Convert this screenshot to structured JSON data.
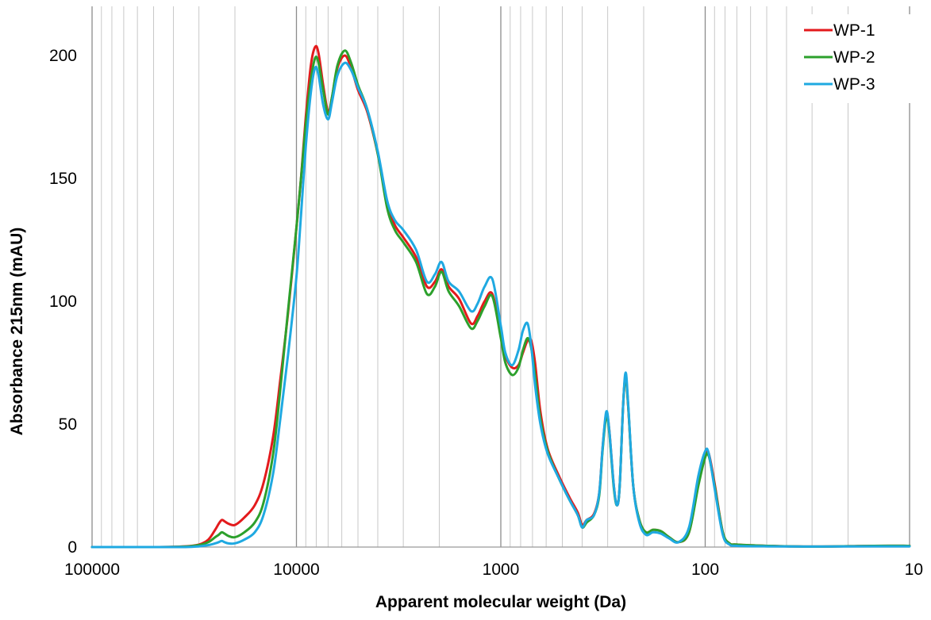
{
  "chart_data": {
    "type": "line",
    "title": "",
    "xlabel": "Apparent molecular weight (Da)",
    "ylabel": "Absorbance 215nm (mAU)",
    "x_scale": "log",
    "x_reversed": true,
    "xlim": [
      100000,
      10
    ],
    "ylim": [
      0,
      220
    ],
    "x_ticks": [
      {
        "value": 100000,
        "label": "100000"
      },
      {
        "value": 10000,
        "label": "10000"
      },
      {
        "value": 1000,
        "label": "1000"
      },
      {
        "value": 100,
        "label": "100"
      },
      {
        "value": 10,
        "label": "10"
      }
    ],
    "y_ticks": [
      {
        "value": 0,
        "label": "0"
      },
      {
        "value": 50,
        "label": "50"
      },
      {
        "value": 100,
        "label": "100"
      },
      {
        "value": 150,
        "label": "150"
      },
      {
        "value": 200,
        "label": "200"
      }
    ],
    "grid": "vertical log gridlines",
    "legend_position": "top-right",
    "series": [
      {
        "name": "WP-1",
        "color": "#e31a1c",
        "points": [
          [
            100000,
            0
          ],
          [
            50000,
            0
          ],
          [
            35000,
            0.3
          ],
          [
            30000,
            1
          ],
          [
            27000,
            3
          ],
          [
            25000,
            7
          ],
          [
            24000,
            9.5
          ],
          [
            23200,
            11
          ],
          [
            22500,
            10.5
          ],
          [
            21500,
            9.5
          ],
          [
            20000,
            9
          ],
          [
            18000,
            12
          ],
          [
            16000,
            17
          ],
          [
            14500,
            26
          ],
          [
            13000,
            45
          ],
          [
            12000,
            68
          ],
          [
            11000,
            95
          ],
          [
            10000,
            130
          ],
          [
            9500,
            150
          ],
          [
            9000,
            175
          ],
          [
            8500,
            196
          ],
          [
            8100,
            203.5
          ],
          [
            7800,
            201
          ],
          [
            7400,
            188
          ],
          [
            7000,
            177
          ],
          [
            6700,
            183
          ],
          [
            6300,
            195
          ],
          [
            5800,
            200
          ],
          [
            5400,
            195
          ],
          [
            5000,
            186
          ],
          [
            4500,
            177
          ],
          [
            4000,
            160
          ],
          [
            3600,
            140
          ],
          [
            3300,
            131
          ],
          [
            3000,
            126
          ],
          [
            2600,
            118
          ],
          [
            2300,
            106
          ],
          [
            2100,
            108
          ],
          [
            1950,
            113
          ],
          [
            1800,
            106
          ],
          [
            1600,
            101
          ],
          [
            1400,
            91
          ],
          [
            1300,
            94
          ],
          [
            1200,
            100
          ],
          [
            1100,
            103
          ],
          [
            1000,
            87
          ],
          [
            950,
            78
          ],
          [
            880,
            73
          ],
          [
            820,
            74
          ],
          [
            780,
            79
          ],
          [
            740,
            84
          ],
          [
            710,
            84
          ],
          [
            680,
            75
          ],
          [
            640,
            55
          ],
          [
            590,
            40
          ],
          [
            520,
            29
          ],
          [
            460,
            20
          ],
          [
            420,
            14
          ],
          [
            400,
            9
          ],
          [
            380,
            11
          ],
          [
            350,
            13.5
          ],
          [
            330,
            22
          ],
          [
            318,
            40
          ],
          [
            305,
            54
          ],
          [
            295,
            48
          ],
          [
            280,
            25
          ],
          [
            270,
            17
          ],
          [
            262,
            25
          ],
          [
            252,
            58
          ],
          [
            245,
            69
          ],
          [
            238,
            57
          ],
          [
            225,
            25
          ],
          [
            210,
            11
          ],
          [
            195,
            6
          ],
          [
            180,
            7
          ],
          [
            165,
            6.5
          ],
          [
            150,
            4
          ],
          [
            135,
            2
          ],
          [
            120,
            6
          ],
          [
            108,
            26
          ],
          [
            100,
            37.5
          ],
          [
            96,
            38
          ],
          [
            90,
            26
          ],
          [
            82,
            6
          ],
          [
            76,
            1.5
          ],
          [
            70,
            1
          ],
          [
            50,
            0.5
          ],
          [
            30,
            0.2
          ],
          [
            15,
            0.5
          ],
          [
            10,
            0.5
          ]
        ]
      },
      {
        "name": "WP-2",
        "color": "#2ca02c",
        "points": [
          [
            100000,
            0
          ],
          [
            50000,
            0
          ],
          [
            35000,
            0.2
          ],
          [
            30000,
            0.8
          ],
          [
            27000,
            2
          ],
          [
            25000,
            4
          ],
          [
            24000,
            5
          ],
          [
            23200,
            6
          ],
          [
            22500,
            5.5
          ],
          [
            21500,
            4.5
          ],
          [
            20000,
            4
          ],
          [
            18000,
            6
          ],
          [
            16000,
            10
          ],
          [
            14500,
            18
          ],
          [
            13000,
            38
          ],
          [
            12000,
            64
          ],
          [
            11000,
            96
          ],
          [
            10000,
            130
          ],
          [
            9500,
            150
          ],
          [
            9000,
            172
          ],
          [
            8500,
            190
          ],
          [
            8100,
            199
          ],
          [
            7800,
            197
          ],
          [
            7400,
            186
          ],
          [
            7000,
            176
          ],
          [
            6700,
            183
          ],
          [
            6300,
            196
          ],
          [
            5800,
            202
          ],
          [
            5400,
            197
          ],
          [
            5000,
            188
          ],
          [
            4500,
            178
          ],
          [
            4000,
            160
          ],
          [
            3600,
            138
          ],
          [
            3300,
            129
          ],
          [
            3000,
            124
          ],
          [
            2600,
            116
          ],
          [
            2300,
            103
          ],
          [
            2100,
            106
          ],
          [
            1950,
            112
          ],
          [
            1800,
            104
          ],
          [
            1600,
            98
          ],
          [
            1400,
            89
          ],
          [
            1300,
            92
          ],
          [
            1200,
            98
          ],
          [
            1100,
            102
          ],
          [
            1000,
            85
          ],
          [
            950,
            75
          ],
          [
            880,
            70
          ],
          [
            820,
            73
          ],
          [
            780,
            80
          ],
          [
            740,
            85
          ],
          [
            710,
            81
          ],
          [
            680,
            70
          ],
          [
            640,
            52
          ],
          [
            590,
            39
          ],
          [
            520,
            28
          ],
          [
            460,
            19
          ],
          [
            420,
            13
          ],
          [
            400,
            8
          ],
          [
            380,
            10
          ],
          [
            350,
            13
          ],
          [
            330,
            21
          ],
          [
            318,
            39
          ],
          [
            305,
            53
          ],
          [
            295,
            47
          ],
          [
            280,
            24
          ],
          [
            270,
            17
          ],
          [
            262,
            25
          ],
          [
            252,
            58
          ],
          [
            245,
            69
          ],
          [
            238,
            57
          ],
          [
            225,
            25
          ],
          [
            210,
            11
          ],
          [
            195,
            6
          ],
          [
            180,
            7
          ],
          [
            165,
            6.5
          ],
          [
            150,
            4
          ],
          [
            135,
            2
          ],
          [
            120,
            6
          ],
          [
            108,
            25
          ],
          [
            100,
            36.5
          ],
          [
            96,
            37
          ],
          [
            90,
            25
          ],
          [
            82,
            6
          ],
          [
            76,
            1.5
          ],
          [
            70,
            1
          ],
          [
            50,
            0.5
          ],
          [
            30,
            0.2
          ],
          [
            15,
            0.5
          ],
          [
            10,
            0.5
          ]
        ]
      },
      {
        "name": "WP-3",
        "color": "#1fa9e1",
        "points": [
          [
            100000,
            0
          ],
          [
            50000,
            0
          ],
          [
            35000,
            0
          ],
          [
            30000,
            0.3
          ],
          [
            27000,
            0.8
          ],
          [
            25000,
            1.5
          ],
          [
            24000,
            2
          ],
          [
            23200,
            2.5
          ],
          [
            22500,
            2
          ],
          [
            21500,
            1.5
          ],
          [
            20000,
            1.5
          ],
          [
            18000,
            3
          ],
          [
            16000,
            6
          ],
          [
            14500,
            13
          ],
          [
            13000,
            30
          ],
          [
            12000,
            52
          ],
          [
            11000,
            78
          ],
          [
            10000,
            110
          ],
          [
            9500,
            135
          ],
          [
            9000,
            163
          ],
          [
            8500,
            185
          ],
          [
            8100,
            195
          ],
          [
            7800,
            192
          ],
          [
            7400,
            180
          ],
          [
            7000,
            174
          ],
          [
            6700,
            181
          ],
          [
            6300,
            192
          ],
          [
            5800,
            197
          ],
          [
            5400,
            194
          ],
          [
            5000,
            187
          ],
          [
            4500,
            178
          ],
          [
            4000,
            161
          ],
          [
            3600,
            141
          ],
          [
            3300,
            133
          ],
          [
            3000,
            129
          ],
          [
            2600,
            121
          ],
          [
            2300,
            108
          ],
          [
            2100,
            111
          ],
          [
            1950,
            116
          ],
          [
            1800,
            108
          ],
          [
            1600,
            104
          ],
          [
            1400,
            96
          ],
          [
            1300,
            99
          ],
          [
            1200,
            106
          ],
          [
            1100,
            109
          ],
          [
            1000,
            90
          ],
          [
            950,
            79
          ],
          [
            880,
            74
          ],
          [
            820,
            80
          ],
          [
            780,
            88
          ],
          [
            740,
            91
          ],
          [
            710,
            82
          ],
          [
            680,
            66
          ],
          [
            640,
            50
          ],
          [
            590,
            38
          ],
          [
            520,
            28
          ],
          [
            460,
            19
          ],
          [
            420,
            13
          ],
          [
            400,
            8
          ],
          [
            380,
            11
          ],
          [
            350,
            13
          ],
          [
            330,
            22
          ],
          [
            318,
            40
          ],
          [
            305,
            55
          ],
          [
            295,
            48
          ],
          [
            280,
            25
          ],
          [
            270,
            17
          ],
          [
            262,
            25
          ],
          [
            252,
            58
          ],
          [
            245,
            71
          ],
          [
            238,
            58
          ],
          [
            225,
            25
          ],
          [
            210,
            10
          ],
          [
            195,
            5
          ],
          [
            180,
            6
          ],
          [
            165,
            5.5
          ],
          [
            150,
            3.5
          ],
          [
            135,
            2
          ],
          [
            120,
            8
          ],
          [
            108,
            29
          ],
          [
            100,
            39
          ],
          [
            96,
            38
          ],
          [
            90,
            24
          ],
          [
            82,
            5
          ],
          [
            76,
            1
          ],
          [
            70,
            0.5
          ],
          [
            50,
            0.3
          ],
          [
            30,
            0.2
          ],
          [
            15,
            0.3
          ],
          [
            10,
            0.3
          ]
        ]
      }
    ]
  }
}
